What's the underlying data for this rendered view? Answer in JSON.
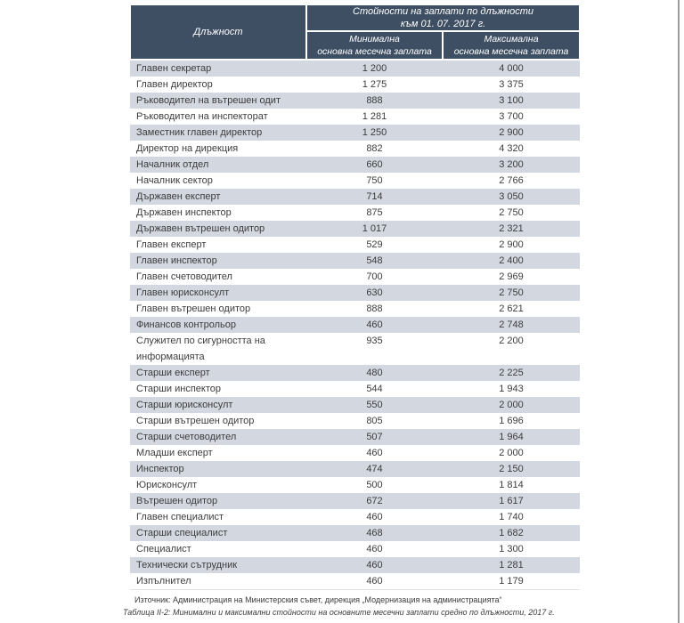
{
  "colors": {
    "header_bg": "#3E4F63",
    "stripe_bg": "#D2D7E0",
    "text": "#3C3C3C",
    "page_edge_line": "#9B9B9B"
  },
  "table": {
    "header": {
      "position_label": "Длъжност",
      "group_title_line1": "Стойности на заплати по длъжности",
      "group_title_line2": "към 01. 07. 2017 г.",
      "min_col_line1": "Минимална",
      "min_col_line2": "основна месечна заплата",
      "max_col_line1": "Максимална",
      "max_col_line2": "основна месечна заплата"
    },
    "rows": [
      {
        "position": "Главен секретар",
        "min": "1 200",
        "max": "4 000"
      },
      {
        "position": "Главен директор",
        "min": "1 275",
        "max": "3 375"
      },
      {
        "position": "Ръководител на вътрешен одит",
        "min": "888",
        "max": "3 100"
      },
      {
        "position": "Ръководител на инспекторат",
        "min": "1 281",
        "max": "3 700"
      },
      {
        "position": "Заместник главен директор",
        "min": "1 250",
        "max": "2 900"
      },
      {
        "position": "Директор на дирекция",
        "min": "882",
        "max": "4 320"
      },
      {
        "position": "Началник отдел",
        "min": "660",
        "max": "3 200"
      },
      {
        "position": "Началник сектор",
        "min": "750",
        "max": "2 766"
      },
      {
        "position": "Държавен експерт",
        "min": "714",
        "max": "3 050"
      },
      {
        "position": "Държавен инспектор",
        "min": "875",
        "max": "2 750"
      },
      {
        "position": "Държавен вътрешен одитор",
        "min": "1 017",
        "max": "2 321"
      },
      {
        "position": "Главен експерт",
        "min": "529",
        "max": "2 900"
      },
      {
        "position": "Главен инспектор",
        "min": "548",
        "max": "2 400"
      },
      {
        "position": "Главен счетоводител",
        "min": "700",
        "max": "2 969"
      },
      {
        "position": "Главен юрисконсулт",
        "min": "630",
        "max": "2 750"
      },
      {
        "position": "Главен вътрешен одитор",
        "min": "888",
        "max": "2 621"
      },
      {
        "position": "Финансов контрольор",
        "min": "460",
        "max": "2 748"
      },
      {
        "position": "Служител по сигурността на информацията",
        "min": "935",
        "max": "2 200"
      },
      {
        "position": "Старши експерт",
        "min": "480",
        "max": "2 225"
      },
      {
        "position": "Старши инспектор",
        "min": "544",
        "max": "1 943"
      },
      {
        "position": "Старши юрисконсулт",
        "min": "550",
        "max": "2 000"
      },
      {
        "position": "Старши вътрешен одитор",
        "min": "805",
        "max": "1 696"
      },
      {
        "position": "Старши счетоводител",
        "min": "507",
        "max": "1 964"
      },
      {
        "position": "Младши експерт",
        "min": "460",
        "max": "2 000"
      },
      {
        "position": "Инспектор",
        "min": "474",
        "max": "2 150"
      },
      {
        "position": "Юрисконсулт",
        "min": "500",
        "max": "1 814"
      },
      {
        "position": "Вътрешен одитор",
        "min": "672",
        "max": "1 617"
      },
      {
        "position": "Главен специалист",
        "min": "460",
        "max": "1 740"
      },
      {
        "position": "Старши специалист",
        "min": "468",
        "max": "1 682"
      },
      {
        "position": "Специалист",
        "min": "460",
        "max": "1 300"
      },
      {
        "position": "Технически сътрудник",
        "min": "460",
        "max": "1 281"
      },
      {
        "position": "Изпълнител",
        "min": "460",
        "max": "1 179"
      }
    ]
  },
  "footer": {
    "source": "Източник: Администрация на Министерския съвет, дирекция „Модернизация на администрацията“",
    "caption": "Таблица II-2: Минимални и максимални стойности на основните месечни заплати средно по длъжности, 2017 г."
  }
}
